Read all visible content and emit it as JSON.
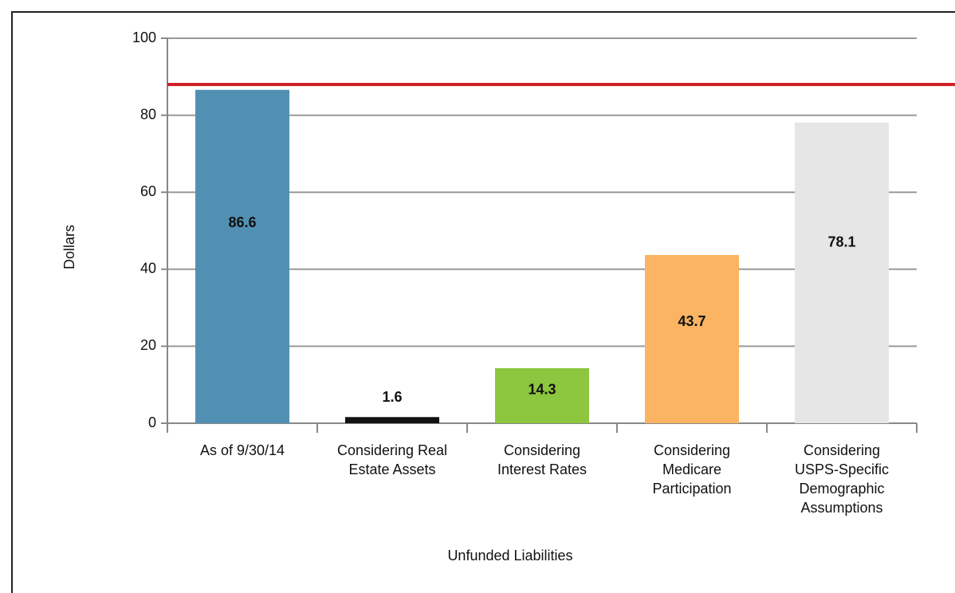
{
  "chart_data": {
    "type": "bar",
    "y_label": "Dollars",
    "x_label": "Unfunded Liabilities",
    "categories": [
      "As of 9/30/14",
      "Considering Real Estate Assets",
      "Considering Interest Rates",
      "Considering Medicare Participation",
      "Considering USPS-Specific Demographic Assumptions"
    ],
    "values": [
      86.6,
      1.6,
      14.3,
      43.7,
      78.1
    ],
    "colors": [
      "#5290b3",
      "#111111",
      "#8dc63f",
      "#fbb462",
      "#e6e6e7"
    ],
    "ylim": [
      0,
      100
    ],
    "yticks": [
      0,
      20,
      40,
      60,
      80,
      100
    ],
    "grid": true,
    "reference_line": {
      "value": 88,
      "color": "#d0202a"
    }
  }
}
